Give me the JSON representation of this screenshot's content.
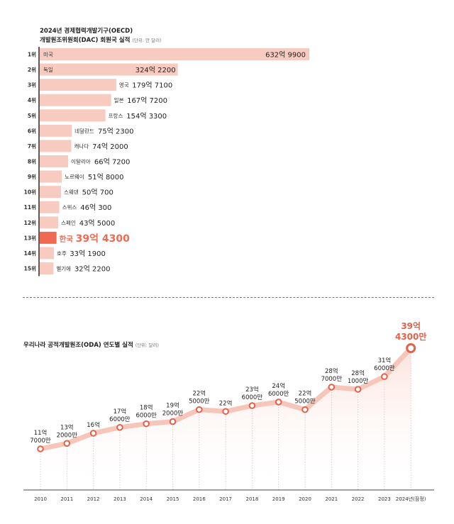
{
  "top_chart": {
    "title_line1": "2024년 경제협력개발기구(OECD)",
    "title_line2": "개발원조위원회(DAC) 회원국 실적",
    "unit": "(단위: 만 달러)"
  },
  "bottom_chart": {
    "title": "우리나라 공적개발원조(ODA) 연도별 실적",
    "unit": "(단위: 달러)"
  },
  "colors": {
    "bar": "#f8cbc0",
    "highlight": "#ee6a52",
    "accent": "#e2624a",
    "line": "#f6c6bb"
  },
  "chart_data": [
    {
      "type": "bar",
      "orientation": "horizontal",
      "title": "2024년 경제협력개발기구(OECD) 개발원조위원회(DAC) 회원국 실적",
      "unit": "만 달러",
      "highlight": "한국",
      "rows": [
        {
          "rank": "1위",
          "country": "미국",
          "value": 6329900,
          "label": "632억 9900"
        },
        {
          "rank": "2위",
          "country": "독일",
          "value": 3242200,
          "label": "324억 2200"
        },
        {
          "rank": "3위",
          "country": "영국",
          "value": 1797100,
          "label": "179억 7100"
        },
        {
          "rank": "4위",
          "country": "일본",
          "value": 1677200,
          "label": "167억 7200"
        },
        {
          "rank": "5위",
          "country": "프랑스",
          "value": 1543300,
          "label": "154억 3300"
        },
        {
          "rank": "6위",
          "country": "네덜란드",
          "value": 752300,
          "label": "75억 2300"
        },
        {
          "rank": "7위",
          "country": "캐나다",
          "value": 742000,
          "label": "74억 2000"
        },
        {
          "rank": "8위",
          "country": "이탈리아",
          "value": 667200,
          "label": "66억 7200"
        },
        {
          "rank": "9위",
          "country": "노르웨이",
          "value": 518000,
          "label": "51억 8000"
        },
        {
          "rank": "10위",
          "country": "스웨덴",
          "value": 500700,
          "label": "50억 700"
        },
        {
          "rank": "11위",
          "country": "스위스",
          "value": 460300,
          "label": "46억 300"
        },
        {
          "rank": "12위",
          "country": "스페인",
          "value": 435000,
          "label": "43억 5000"
        },
        {
          "rank": "13위",
          "country": "한국",
          "value": 394300,
          "label": "39억 4300"
        },
        {
          "rank": "14위",
          "country": "호주",
          "value": 331900,
          "label": "33억 1900"
        },
        {
          "rank": "15위",
          "country": "벨기에",
          "value": 322200,
          "label": "32억 2200"
        }
      ]
    },
    {
      "type": "line",
      "title": "우리나라 공적개발원조(ODA) 연도별 실적",
      "unit": "달러",
      "x": [
        "2010",
        "2011",
        "2012",
        "2013",
        "2014",
        "2015",
        "2016",
        "2017",
        "2018",
        "2019",
        "2020",
        "2021",
        "2022",
        "2023",
        "2024년(잠정)"
      ],
      "values": [
        1170000000,
        1320000000,
        1600000000,
        1760000000,
        1860000000,
        1920000000,
        2250000000,
        2200000000,
        2360000000,
        2460000000,
        2250000000,
        2870000000,
        2810000000,
        3160000000,
        3943000000
      ],
      "labels": [
        [
          "11억",
          "7000만"
        ],
        [
          "13억",
          "2000만"
        ],
        [
          "16억"
        ],
        [
          "17억",
          "6000만"
        ],
        [
          "18억",
          "6000만"
        ],
        [
          "19억",
          "2000만"
        ],
        [
          "22억",
          "5000만"
        ],
        [
          "22억"
        ],
        [
          "23억",
          "6000만"
        ],
        [
          "24억",
          "6000만"
        ],
        [
          "22억",
          "5000만"
        ],
        [
          "28억",
          "7000만"
        ],
        [
          "28억",
          "1000만"
        ],
        [
          "31억",
          "6000만"
        ],
        [
          "39억",
          "4300만"
        ]
      ],
      "highlight_last": true
    }
  ]
}
